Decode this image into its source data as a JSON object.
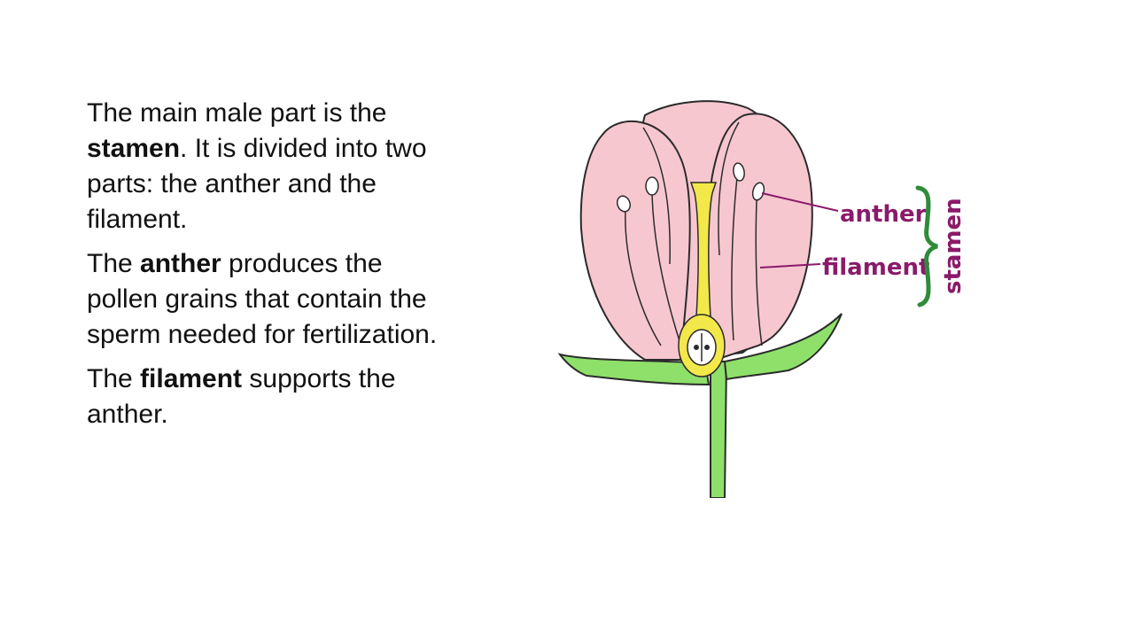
{
  "paragraphs": [
    {
      "segments": [
        {
          "text": "The main male part is the ",
          "bold": false
        },
        {
          "text": "stamen",
          "bold": true
        },
        {
          "text": ". It is divided into two parts: the anther and the filament.",
          "bold": false
        }
      ]
    },
    {
      "segments": [
        {
          "text": "The ",
          "bold": false
        },
        {
          "text": "anther",
          "bold": true
        },
        {
          "text": " produces the pollen grains that contain the sperm needed for fertilization.",
          "bold": false
        }
      ]
    },
    {
      "segments": [
        {
          "text": "The ",
          "bold": false
        },
        {
          "text": "filament",
          "bold": true
        },
        {
          "text": " supports the anther.",
          "bold": false
        }
      ]
    }
  ],
  "diagram": {
    "labels": {
      "anther": "anther",
      "filament": "filament",
      "stamen": "stamen"
    },
    "colors": {
      "petal": "#f7c7cf",
      "pistil": "#f3e84a",
      "stem": "#8ee06a",
      "label": "#8a1a6a",
      "brace": "#2e8b3a"
    }
  }
}
